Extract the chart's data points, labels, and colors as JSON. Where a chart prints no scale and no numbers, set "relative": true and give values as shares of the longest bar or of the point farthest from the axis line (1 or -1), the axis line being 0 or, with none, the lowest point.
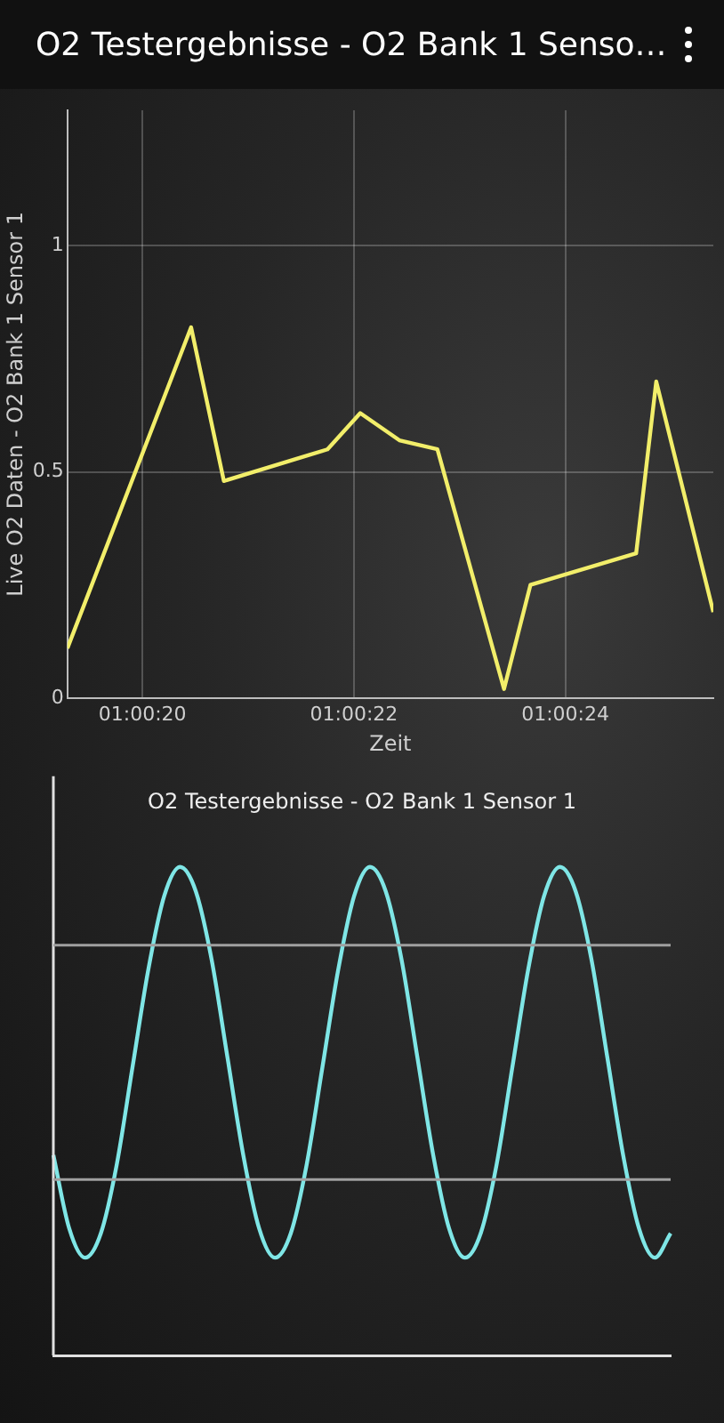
{
  "chart_data": [
    {
      "type": "line",
      "title": "O2 Testergebnisse - O2 Bank 1 Senso…",
      "xlabel": "Zeit",
      "ylabel": "Live O2 Daten - O2 Bank 1 Sensor 1",
      "x": [
        1.0053583,
        1.0056833,
        1.0057694,
        1.0060417,
        1.0061278,
        1.0062306,
        1.0063306,
        1.0065056,
        1.006575,
        1.0068528,
        1.0069056,
        1.0070556
      ],
      "series": [
        {
          "color": "#f2ee6a",
          "values": [
            0.11,
            0.82,
            0.48,
            0.55,
            0.63,
            0.57,
            0.55,
            0.02,
            0.25,
            0.32,
            0.7,
            0.19
          ]
        }
      ],
      "xlim": [
        1.0053583,
        1.0070556
      ],
      "xticks": [
        {
          "value": 1.0055556,
          "label": "01:00:20"
        },
        {
          "value": 1.0061111,
          "label": "01:00:22"
        },
        {
          "value": 1.0066667,
          "label": "01:00:24"
        }
      ],
      "ylim": [
        0,
        1.3
      ],
      "yticks": [
        0,
        0.5,
        1
      ],
      "grid": true
    },
    {
      "type": "line",
      "title": "O2 Testergebnisse - O2 Bank 1 Sensor 1",
      "relative": true,
      "categories": [
        null,
        null,
        null,
        null,
        null,
        null,
        null,
        null,
        null,
        null,
        null,
        null,
        null,
        null,
        null,
        null,
        null,
        null,
        null,
        null,
        null,
        null,
        null,
        null,
        null,
        null,
        null,
        null,
        null,
        null,
        null,
        null,
        null,
        null,
        null,
        null,
        null,
        null,
        null,
        null
      ],
      "series": [
        {
          "color": "#7fe6e6",
          "values": [
            0.41,
            0.26,
            0.2,
            0.25,
            0.39,
            0.59,
            0.79,
            0.94,
            1.0,
            0.95,
            0.81,
            0.61,
            0.41,
            0.26,
            0.2,
            0.25,
            0.39,
            0.59,
            0.79,
            0.94,
            1.0,
            0.95,
            0.81,
            0.61,
            0.41,
            0.26,
            0.2,
            0.25,
            0.39,
            0.59,
            0.79,
            0.94,
            1.0,
            0.95,
            0.81,
            0.61,
            0.41,
            0.26,
            0.2,
            0.25
          ]
        }
      ],
      "ref_lines": [
        {
          "axis": "y",
          "value": 0.84,
          "color": "#a0a0a0"
        },
        {
          "axis": "y",
          "value": 0.36,
          "color": "#a0a0a0"
        }
      ]
    }
  ]
}
